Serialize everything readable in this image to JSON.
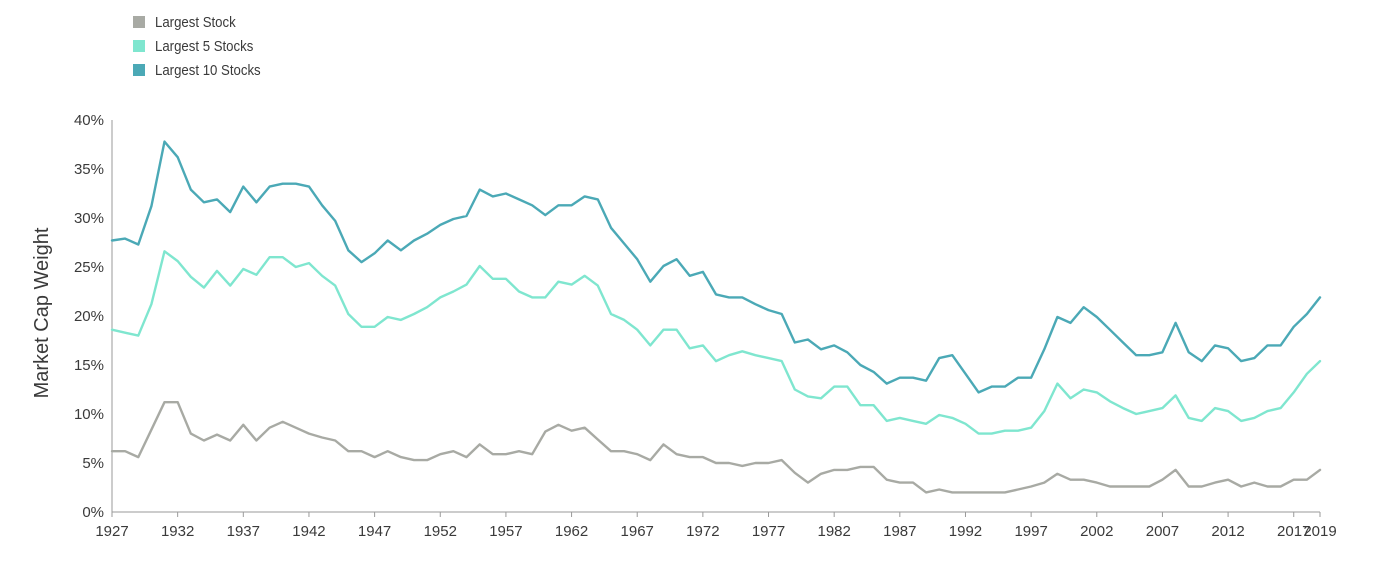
{
  "chart_data": {
    "type": "line",
    "title": "",
    "xlabel": "",
    "ylabel": "Market Cap Weight",
    "xlim": [
      1927,
      2019
    ],
    "ylim": [
      0,
      40
    ],
    "x_ticks": [
      1927,
      1932,
      1937,
      1942,
      1947,
      1952,
      1957,
      1962,
      1967,
      1972,
      1977,
      1982,
      1987,
      1992,
      1997,
      2002,
      2007,
      2012,
      2017,
      2019
    ],
    "y_ticks": [
      0,
      5,
      10,
      15,
      20,
      25,
      30,
      35,
      40
    ],
    "y_tick_labels": [
      "0%",
      "5%",
      "10%",
      "15%",
      "20%",
      "25%",
      "30%",
      "35%",
      "40%"
    ],
    "grid": false,
    "legend_position": "top-left",
    "x": [
      1927,
      1928,
      1929,
      1930,
      1931,
      1932,
      1933,
      1934,
      1935,
      1936,
      1937,
      1938,
      1939,
      1940,
      1941,
      1942,
      1943,
      1944,
      1945,
      1946,
      1947,
      1948,
      1949,
      1950,
      1951,
      1952,
      1953,
      1954,
      1955,
      1956,
      1957,
      1958,
      1959,
      1960,
      1961,
      1962,
      1963,
      1964,
      1965,
      1966,
      1967,
      1968,
      1969,
      1970,
      1971,
      1972,
      1973,
      1974,
      1975,
      1976,
      1977,
      1978,
      1979,
      1980,
      1981,
      1982,
      1983,
      1984,
      1985,
      1986,
      1987,
      1988,
      1989,
      1990,
      1991,
      1992,
      1993,
      1994,
      1995,
      1996,
      1997,
      1998,
      1999,
      2000,
      2001,
      2002,
      2003,
      2004,
      2005,
      2006,
      2007,
      2008,
      2009,
      2010,
      2011,
      2012,
      2013,
      2014,
      2015,
      2016,
      2017,
      2018,
      2019
    ],
    "series": [
      {
        "name": "Largest Stock",
        "color": "#a8aaa4",
        "values": [
          6.2,
          6.2,
          5.6,
          8.4,
          11.2,
          11.2,
          8.0,
          7.3,
          7.9,
          7.3,
          8.9,
          7.3,
          8.6,
          9.2,
          8.6,
          8.0,
          7.6,
          7.3,
          6.2,
          6.2,
          5.6,
          6.2,
          5.6,
          5.3,
          5.3,
          5.9,
          6.2,
          5.6,
          6.9,
          5.9,
          5.9,
          6.2,
          5.9,
          8.2,
          8.9,
          8.3,
          8.6,
          7.4,
          6.2,
          6.2,
          5.9,
          5.3,
          6.9,
          5.9,
          5.6,
          5.6,
          5.0,
          5.0,
          4.7,
          5.0,
          5.0,
          5.3,
          4.0,
          3.0,
          3.9,
          4.3,
          4.3,
          4.6,
          4.6,
          3.3,
          3.0,
          3.0,
          2.0,
          2.3,
          2.0,
          2.0,
          2.0,
          2.0,
          2.0,
          2.3,
          2.6,
          3.0,
          3.9,
          3.3,
          3.3,
          3.0,
          2.6,
          2.6,
          2.6,
          2.6,
          3.3,
          4.3,
          2.6,
          2.6,
          3.0,
          3.3,
          2.6,
          3.0,
          2.6,
          2.6,
          3.3,
          3.3,
          4.3
        ]
      },
      {
        "name": "Largest 5 Stocks",
        "color": "#7fe6cf",
        "values": [
          18.6,
          18.3,
          18.0,
          21.2,
          26.6,
          25.6,
          24.0,
          22.9,
          24.6,
          23.1,
          24.8,
          24.2,
          26.0,
          26.0,
          25.0,
          25.4,
          24.1,
          23.1,
          20.2,
          18.9,
          18.9,
          19.9,
          19.6,
          20.2,
          20.9,
          21.9,
          22.5,
          23.2,
          25.1,
          23.8,
          23.8,
          22.5,
          21.9,
          21.9,
          23.5,
          23.2,
          24.1,
          23.1,
          20.2,
          19.6,
          18.6,
          17.0,
          18.6,
          18.6,
          16.7,
          17.0,
          15.4,
          16.0,
          16.4,
          16.0,
          15.7,
          15.4,
          12.5,
          11.8,
          11.6,
          12.8,
          12.8,
          10.9,
          10.9,
          9.3,
          9.6,
          9.3,
          9.0,
          9.9,
          9.6,
          9.0,
          8.0,
          8.0,
          8.3,
          8.3,
          8.6,
          10.3,
          13.1,
          11.6,
          12.5,
          12.2,
          11.3,
          10.6,
          10.0,
          10.3,
          10.6,
          11.9,
          9.6,
          9.3,
          10.6,
          10.3,
          9.3,
          9.6,
          10.3,
          10.6,
          12.2,
          14.1,
          15.4
        ]
      },
      {
        "name": "Largest 10 Stocks",
        "color": "#4ba9b6",
        "values": [
          27.7,
          27.9,
          27.3,
          31.2,
          37.8,
          36.2,
          32.9,
          31.6,
          31.9,
          30.6,
          33.2,
          31.6,
          33.2,
          33.5,
          33.5,
          33.2,
          31.3,
          29.7,
          26.7,
          25.5,
          26.4,
          27.7,
          26.7,
          27.7,
          28.4,
          29.3,
          29.9,
          30.2,
          32.9,
          32.2,
          32.5,
          31.9,
          31.3,
          30.3,
          31.3,
          31.3,
          32.2,
          31.9,
          29.0,
          27.4,
          25.8,
          23.5,
          25.1,
          25.8,
          24.1,
          24.5,
          22.2,
          21.9,
          21.9,
          21.2,
          20.6,
          20.2,
          17.3,
          17.6,
          16.6,
          17.0,
          16.3,
          15.0,
          14.3,
          13.1,
          13.7,
          13.7,
          13.4,
          15.7,
          16.0,
          14.1,
          12.2,
          12.8,
          12.8,
          13.7,
          13.7,
          16.6,
          19.9,
          19.3,
          20.9,
          19.9,
          18.6,
          17.3,
          16.0,
          16.0,
          16.3,
          19.3,
          16.3,
          15.4,
          17.0,
          16.7,
          15.4,
          15.7,
          17.0,
          17.0,
          18.9,
          20.2,
          21.9
        ]
      }
    ]
  }
}
